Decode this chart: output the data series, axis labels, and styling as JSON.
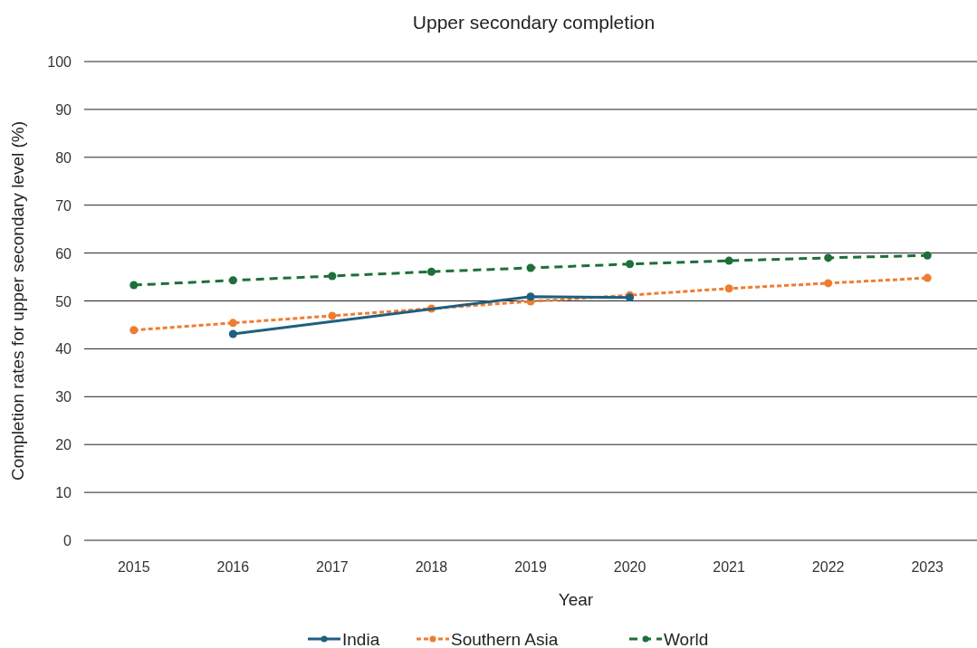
{
  "chart_data": {
    "type": "line",
    "title": "Upper secondary completion",
    "xlabel": "Year",
    "ylabel": "Completion rates for upper secondary level (%)",
    "categories": [
      "2015",
      "2016",
      "2017",
      "2018",
      "2019",
      "2020",
      "2021",
      "2022",
      "2023"
    ],
    "series": [
      {
        "name": "India",
        "color": "#1f5f7f",
        "line_style": "solid",
        "values": [
          null,
          43.1,
          null,
          null,
          50.9,
          50.7,
          null,
          null,
          null
        ]
      },
      {
        "name": "Southern Asia",
        "color": "#ee7d31",
        "line_style": "dotted",
        "values": [
          43.9,
          45.4,
          46.9,
          48.4,
          49.9,
          51.2,
          52.6,
          53.7,
          54.8
        ]
      },
      {
        "name": "World",
        "color": "#1e6f3a",
        "line_style": "dashed",
        "values": [
          53.3,
          54.3,
          55.2,
          56.1,
          56.9,
          57.7,
          58.4,
          59.0,
          59.5
        ]
      }
    ],
    "ylim": [
      0,
      100
    ],
    "yticks": [
      0,
      10,
      20,
      30,
      40,
      50,
      60,
      70,
      80,
      90,
      100
    ],
    "grid": "y",
    "legend": "bottom",
    "marker": "circle"
  }
}
